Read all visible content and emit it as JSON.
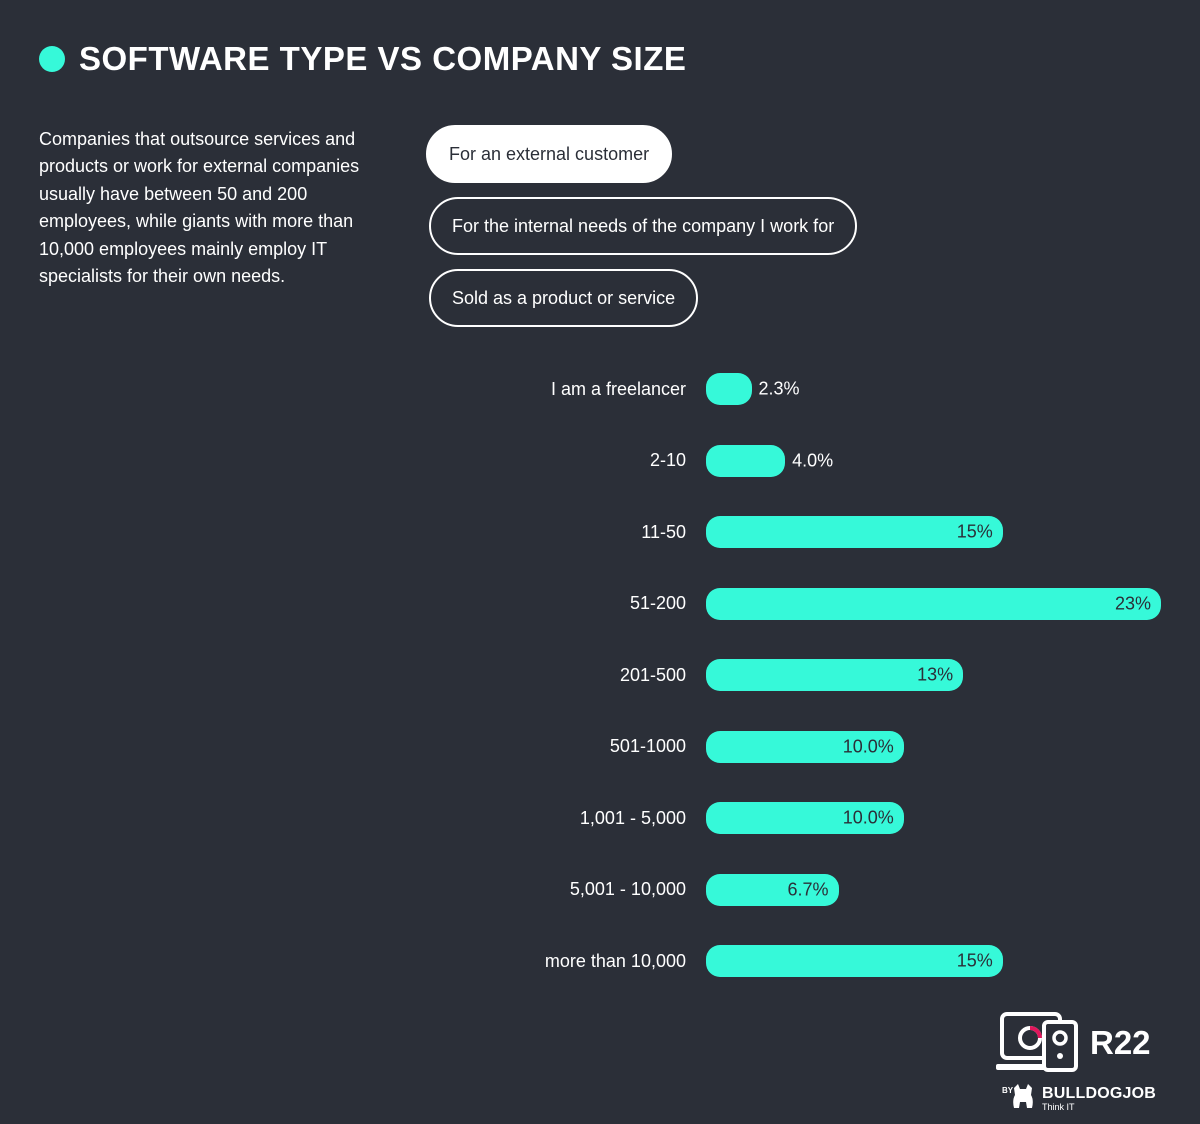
{
  "header": {
    "title": "SOFTWARE TYPE VS COMPANY SIZE",
    "accent_color": "#36f9d9"
  },
  "description": "Companies that outsource services and products or work for external companies usually have between 50 and 200 employees, while giants with more than 10,000 employees mainly employ IT specialists for their own needs.",
  "legend": {
    "options": [
      {
        "label": "For an external customer",
        "active": true
      },
      {
        "label": "For the internal needs of the company I work for",
        "active": false
      },
      {
        "label": "Sold as a product or service",
        "active": false
      }
    ]
  },
  "chart_data": {
    "type": "bar",
    "orientation": "horizontal",
    "title": "SOFTWARE TYPE VS COMPANY SIZE",
    "series_name": "For an external customer",
    "categories": [
      "I am a freelancer",
      "2-10",
      "11-50",
      "51-200",
      "201-500",
      "501-1000",
      "1,001 - 5,000",
      "5,001 - 10,000",
      "more than 10,000"
    ],
    "values": [
      2.3,
      4.0,
      15,
      23,
      13,
      10.0,
      10.0,
      6.7,
      15
    ],
    "value_labels": [
      "2.3%",
      "4.0%",
      "15%",
      "23%",
      "13%",
      "10.0%",
      "10.0%",
      "6.7%",
      "15%"
    ],
    "bar_color": "#36f9d9",
    "xlabel": "",
    "ylabel": "",
    "grid": false,
    "legend_position": "top"
  },
  "logo": {
    "report": "R22",
    "by": "BY",
    "brand": "BULLDOGJOB",
    "tagline": "Think IT"
  }
}
